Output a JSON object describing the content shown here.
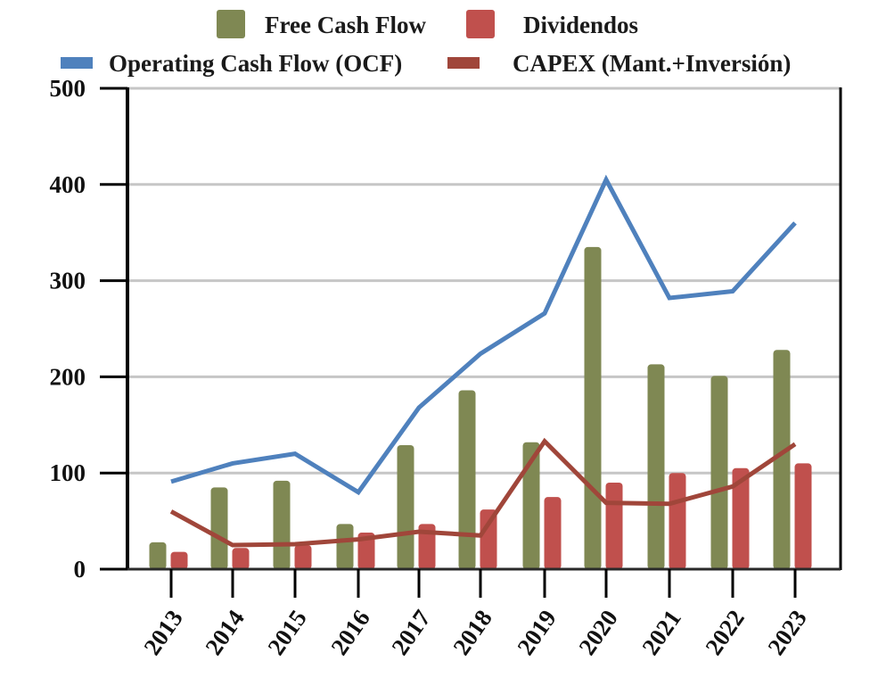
{
  "chart_data": {
    "type": "bar",
    "title": "",
    "xlabel": "",
    "ylabel": "",
    "ylim": [
      0,
      500
    ],
    "yticks": [
      "0",
      "100",
      "200",
      "300",
      "400",
      "500"
    ],
    "grid": true,
    "legend_position": "top",
    "categories": [
      "2013",
      "2014",
      "2015",
      "2016",
      "2017",
      "2018",
      "2019",
      "2020",
      "2021",
      "2022",
      "2023"
    ],
    "series": [
      {
        "name": "Free Cash Flow",
        "kind": "bar",
        "color": "#7f8853",
        "values": [
          28,
          85,
          92,
          47,
          129,
          186,
          132,
          335,
          213,
          201,
          228
        ]
      },
      {
        "name": "Dividendos",
        "kind": "bar",
        "color": "#c0504d",
        "values": [
          18,
          22,
          25,
          38,
          47,
          62,
          75,
          90,
          100,
          105,
          110
        ]
      },
      {
        "name": "Operating Cash Flow (OCF)",
        "kind": "line",
        "color": "#4f81bd",
        "values": [
          91,
          110,
          120,
          80,
          168,
          224,
          266,
          405,
          282,
          289,
          360
        ]
      },
      {
        "name": "CAPEX (Mant.+Inversión)",
        "kind": "line",
        "color": "#a0463a",
        "values": [
          60,
          25,
          26,
          31,
          39,
          35,
          133,
          69,
          68,
          86,
          130
        ]
      }
    ]
  }
}
